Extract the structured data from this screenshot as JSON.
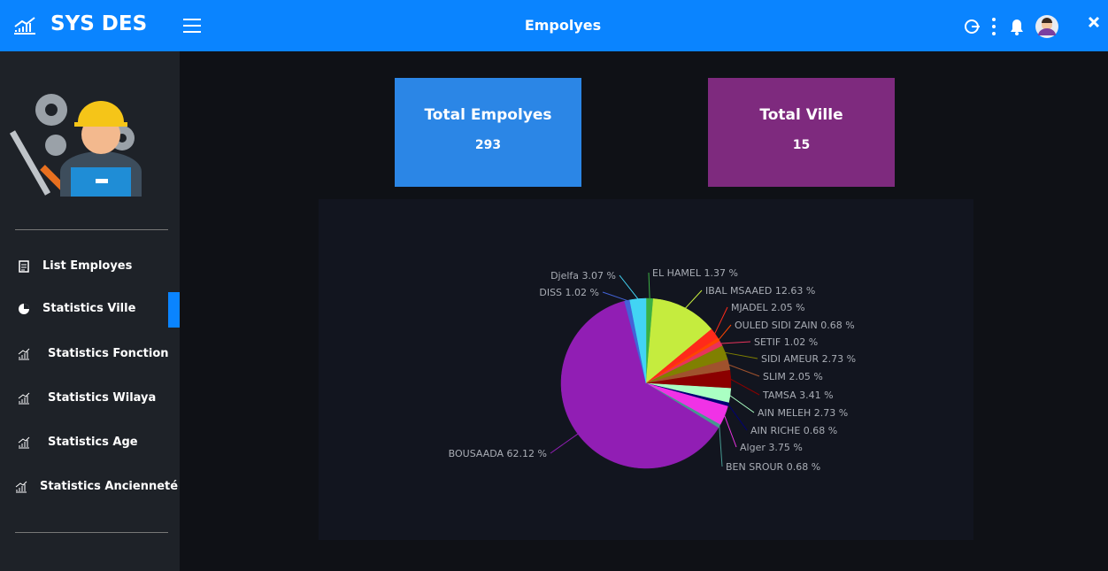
{
  "header": {
    "logo": "SYS DES",
    "title": "Empolyes"
  },
  "sidebar": {
    "menu": [
      "List Employes",
      "Statistics Ville",
      "Statistics Fonction",
      "Statistics Wilaya",
      "Statistics Age",
      "Statistics Ancienneté"
    ]
  },
  "cards": [
    {
      "title": "Total Empolyes",
      "value": "293"
    },
    {
      "title": "Total Ville",
      "value": "15"
    }
  ],
  "chart_data": {
    "type": "pie",
    "categories": [
      "EL HAMEL",
      "IBAL MSAAED",
      "MJADEL",
      "OULED SIDI ZAIN",
      "SETIF",
      "SIDI AMEUR",
      "SLIM",
      "TAMSA",
      "AIN MELEH",
      "AIN RICHE",
      "Alger",
      "BEN SROUR",
      "BOUSAADA",
      "DISS",
      "Djelfa"
    ],
    "values": [
      1.37,
      12.63,
      2.05,
      0.68,
      1.02,
      2.73,
      2.05,
      3.41,
      2.73,
      0.68,
      3.75,
      0.68,
      62.12,
      1.02,
      3.07
    ],
    "value_labels": [
      "1.37 %",
      "12.63 %",
      "2.05 %",
      "0.68 %",
      "1.02 %",
      "2.73 %",
      "2.05 %",
      "3.41 %",
      "2.73 %",
      "0.68 %",
      "3.75 %",
      "0.68 %",
      "62.12 %",
      "1.02 %",
      "3.07 %"
    ],
    "colors": [
      "#3cb043",
      "#c5ec3e",
      "#ff2a1a",
      "#ff4500",
      "#e8335a",
      "#808000",
      "#a0522d",
      "#8b0000",
      "#aaffc3",
      "#000075",
      "#f032e6",
      "#469990",
      "#911eb4",
      "#4363d8",
      "#42d4f4"
    ]
  }
}
